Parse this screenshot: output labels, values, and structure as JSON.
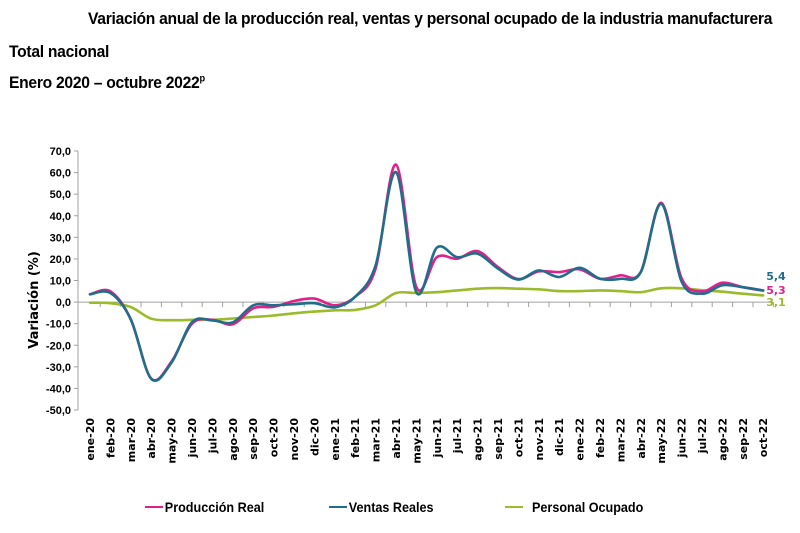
{
  "header": {
    "title": "Variación anual de la producción real, ventas y personal ocupado de la industria manufacturera",
    "subtitle1": "Total nacional",
    "subtitle2": "Enero 2020 – octubre 2022",
    "subtitle2_sup": "p"
  },
  "chart_data": {
    "type": "line",
    "title": "Variación anual de la producción real, ventas y personal ocupado de la industria manufacturera",
    "xlabel": "",
    "ylabel": "Variación (%)",
    "ylim": [
      -50,
      70
    ],
    "yticks": [
      70,
      60,
      50,
      40,
      30,
      20,
      10,
      0,
      -10,
      -20,
      -30,
      -40,
      -50
    ],
    "ytick_labels": [
      "70,0",
      "60,0",
      "50,0",
      "40,0",
      "30,0",
      "20,0",
      "10,0",
      "0,0",
      "-10,0",
      "-20,0",
      "-30,0",
      "-40,0",
      "-50,0"
    ],
    "grid": false,
    "legend_position": "bottom",
    "categories": [
      "ene-20",
      "feb-20",
      "mar-20",
      "abr-20",
      "may-20",
      "jun-20",
      "jul-20",
      "ago-20",
      "sep-20",
      "oct-20",
      "nov-20",
      "dic-20",
      "ene-21",
      "feb-21",
      "mar-21",
      "abr-21",
      "may-21",
      "jun-21",
      "jul-21",
      "ago-21",
      "sep-21",
      "oct-21",
      "nov-21",
      "dic-21",
      "ene-22",
      "feb-22",
      "mar-22",
      "abr-22",
      "may-22",
      "jun-22",
      "jul-22",
      "ago-22",
      "sep-22",
      "oct-22"
    ],
    "series": [
      {
        "name": "Producción Real",
        "color": "#E0218A",
        "values": [
          3.6,
          5.0,
          -8.0,
          -35.5,
          -27.5,
          -10.0,
          -8.2,
          -10.3,
          -2.9,
          -2.2,
          0.5,
          1.6,
          -1.5,
          2.5,
          15.5,
          63.7,
          6.9,
          20.8,
          20.1,
          23.6,
          16.2,
          10.7,
          14.2,
          13.9,
          15.2,
          10.8,
          12.4,
          14.0,
          46.0,
          11.0,
          5.0,
          9.0,
          6.9,
          5.3
        ],
        "end_label": "5,3"
      },
      {
        "name": "Ventas Reales",
        "color": "#1F6E8C",
        "values": [
          3.6,
          4.2,
          -8.0,
          -35.5,
          -28.0,
          -9.3,
          -8.5,
          -9.4,
          -1.5,
          -1.5,
          -1.0,
          -0.5,
          -2.4,
          2.5,
          17.0,
          60.2,
          4.5,
          25.2,
          20.8,
          22.4,
          15.5,
          10.4,
          14.7,
          11.6,
          15.9,
          10.8,
          10.8,
          13.9,
          45.5,
          9.5,
          3.9,
          7.8,
          6.9,
          5.4
        ],
        "end_label": "5,4"
      },
      {
        "name": "Personal Ocupado",
        "color": "#9BBB2B",
        "values": [
          -0.3,
          -0.5,
          -2.3,
          -7.7,
          -8.4,
          -8.2,
          -8.2,
          -7.6,
          -6.9,
          -6.2,
          -5.2,
          -4.4,
          -3.8,
          -3.6,
          -1.5,
          4.2,
          4.2,
          4.6,
          5.4,
          6.2,
          6.5,
          6.2,
          5.9,
          5.1,
          5.1,
          5.4,
          5.1,
          4.6,
          6.4,
          6.4,
          5.5,
          4.8,
          3.9,
          3.1
        ],
        "end_label": "3,1"
      }
    ]
  },
  "legend": {
    "items": [
      {
        "label": "Producción Real",
        "color": "#E0218A"
      },
      {
        "label": "Ventas Reales",
        "color": "#1F6E8C"
      },
      {
        "label": "Personal Ocupado",
        "color": "#9BBB2B"
      }
    ]
  }
}
